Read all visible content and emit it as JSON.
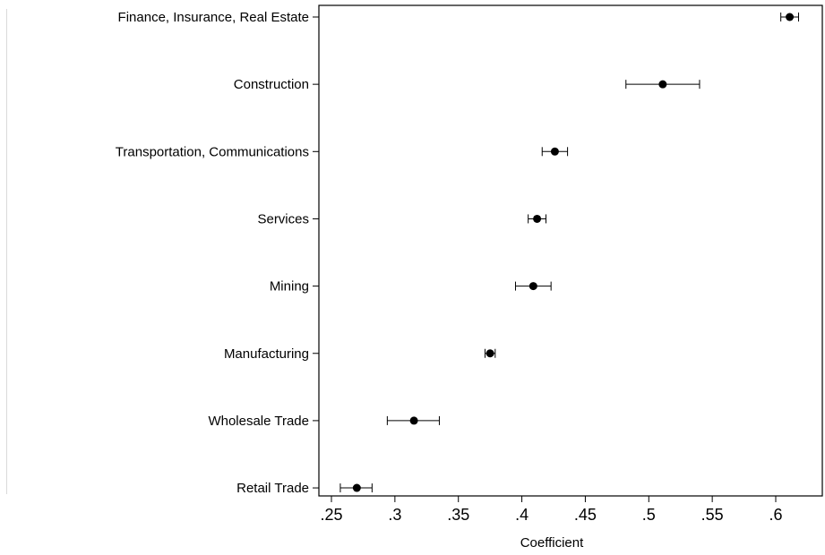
{
  "chart_data": {
    "type": "scatter",
    "title": "",
    "xlabel": "Coefficient",
    "ylabel": "",
    "xlim": [
      0.25,
      0.62
    ],
    "xticks": [
      0.25,
      0.3,
      0.35,
      0.4,
      0.45,
      0.5,
      0.55,
      0.6
    ],
    "xtick_labels": [
      ".25",
      ".3",
      ".35",
      ".4",
      ".45",
      ".5",
      ".55",
      ".6"
    ],
    "grid": false,
    "error_bars": true,
    "points": [
      {
        "category": "Finance, Insurance, Real Estate",
        "value": 0.611,
        "lo": 0.604,
        "hi": 0.618
      },
      {
        "category": "Construction",
        "value": 0.511,
        "lo": 0.482,
        "hi": 0.54
      },
      {
        "category": "Transportation, Communications",
        "value": 0.426,
        "lo": 0.416,
        "hi": 0.436
      },
      {
        "category": "Services",
        "value": 0.412,
        "lo": 0.405,
        "hi": 0.419
      },
      {
        "category": "Mining",
        "value": 0.409,
        "lo": 0.395,
        "hi": 0.423
      },
      {
        "category": "Manufacturing",
        "value": 0.375,
        "lo": 0.371,
        "hi": 0.379
      },
      {
        "category": "Wholesale Trade",
        "value": 0.315,
        "lo": 0.294,
        "hi": 0.335
      },
      {
        "category": "Retail Trade",
        "value": 0.27,
        "lo": 0.257,
        "hi": 0.282
      }
    ]
  }
}
